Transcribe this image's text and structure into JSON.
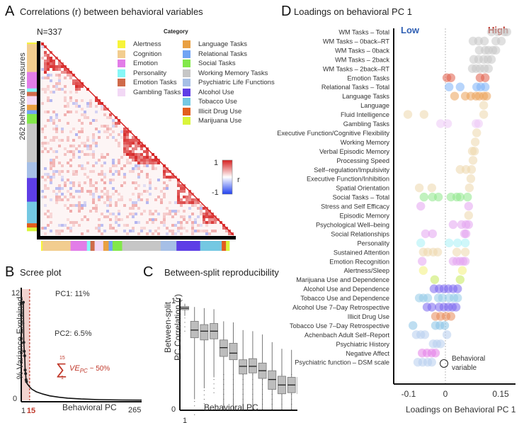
{
  "panelA": {
    "letter": "A",
    "title": "Correlations (r)  between behavioral variables",
    "n_label": "N=337",
    "y_label": "262 behavioral measures",
    "legend_title": "Category",
    "legend": [
      {
        "label": "Alertness",
        "color": "#f7f43a"
      },
      {
        "label": "Cognition",
        "color": "#f2cd8f"
      },
      {
        "label": "Emotion",
        "color": "#e27de8"
      },
      {
        "label": "Personality",
        "color": "#86f7f7"
      },
      {
        "label": "Emotion Tasks",
        "color": "#cf6a4a"
      },
      {
        "label": "Gambling Tasks",
        "color": "#f2d8f5"
      },
      {
        "label": "Language Tasks",
        "color": "#e9a042"
      },
      {
        "label": "Relational Tasks",
        "color": "#71a4f4"
      },
      {
        "label": "Social Tasks",
        "color": "#82e84a"
      },
      {
        "label": "Working Memory Tasks",
        "color": "#c6c6c6"
      },
      {
        "label": "Psychiatric Life Functions",
        "color": "#a6bfe6"
      },
      {
        "label": "Alcohol Use",
        "color": "#5e3ee6"
      },
      {
        "label": "Tobacco Use",
        "color": "#74c8e2"
      },
      {
        "label": "Illicit Drug Use",
        "color": "#e25d1c"
      },
      {
        "label": "Marijuana Use",
        "color": "#d9f53a"
      }
    ],
    "category_bar": [
      {
        "category": "Alertness",
        "fraction": 0.008
      },
      {
        "category": "Cognition",
        "fraction": 0.145
      },
      {
        "category": "Emotion",
        "fraction": 0.085
      },
      {
        "category": "Personality",
        "fraction": 0.018
      },
      {
        "category": "Emotion Tasks",
        "fraction": 0.022
      },
      {
        "category": "Gambling Tasks",
        "fraction": 0.045
      },
      {
        "category": "Language Tasks",
        "fraction": 0.028
      },
      {
        "category": "Relational Tasks",
        "fraction": 0.02
      },
      {
        "category": "Social Tasks",
        "fraction": 0.05
      },
      {
        "category": "Working Memory Tasks",
        "fraction": 0.2
      },
      {
        "category": "Psychiatric Life Functions",
        "fraction": 0.082
      },
      {
        "category": "Alcohol Use",
        "fraction": 0.123
      },
      {
        "category": "Tobacco Use",
        "fraction": 0.112
      },
      {
        "category": "Illicit Drug Use",
        "fraction": 0.022
      },
      {
        "category": "Marijuana Use",
        "fraction": 0.018
      }
    ],
    "colorbar": {
      "max_label": "1",
      "min_label": "-1",
      "label": "r",
      "max_color": "#d62020",
      "mid_color": "#ffffff",
      "min_color": "#2040f0"
    }
  },
  "chart_data": [
    {
      "type": "line",
      "panel": "B",
      "title": "Scree plot",
      "xlabel": "Behavioral PC",
      "ylabel": "% Variance Explained",
      "x_tick_labels": [
        "1",
        "15",
        "265"
      ],
      "y_tick_labels": [
        "0",
        "12"
      ],
      "xlim": [
        1,
        265
      ],
      "ylim": [
        0,
        12
      ],
      "highlight_range": [
        1,
        15
      ],
      "cutoff_pc": 15,
      "points": [
        {
          "pc": 1,
          "ve": 11
        },
        {
          "pc": 2,
          "ve": 6.5
        },
        {
          "pc": 3,
          "ve": 5.5
        },
        {
          "pc": 4,
          "ve": 5.0
        },
        {
          "pc": 5,
          "ve": 3.4
        },
        {
          "pc": 6,
          "ve": 3.0
        },
        {
          "pc": 7,
          "ve": 2.3
        },
        {
          "pc": 8,
          "ve": 2.1
        }
      ],
      "curve": [
        [
          9,
          1.9
        ],
        [
          12,
          1.7
        ],
        [
          15,
          1.5
        ],
        [
          20,
          1.25
        ],
        [
          30,
          0.95
        ],
        [
          45,
          0.7
        ],
        [
          60,
          0.5
        ],
        [
          80,
          0.35
        ],
        [
          100,
          0.25
        ],
        [
          130,
          0.15
        ],
        [
          170,
          0.08
        ],
        [
          220,
          0.04
        ],
        [
          265,
          0.02
        ]
      ],
      "annotations": [
        "PC1: 11%",
        "PC2: 6.5%"
      ],
      "sum_annotation": {
        "upper": "15",
        "lower": "1",
        "symbol": "∑",
        "text": "VE",
        "subscript": "PC",
        "suffix": " ~ 50%"
      },
      "accent_color": "#c0392b"
    },
    {
      "type": "box",
      "panel": "C",
      "title": "Between-split reproducibility",
      "xlabel": "Behavioral PC",
      "ylabel": "Between-split PC Correlation (r)",
      "x_tick_labels": [
        "1",
        "15"
      ],
      "y_tick_labels": [
        "0",
        "1"
      ],
      "ylim": [
        0,
        1
      ],
      "boxes": [
        {
          "pc": 1,
          "q1": 0.915,
          "median": 0.93,
          "q3": 0.945,
          "whisk_lo": 0.86,
          "whisk_hi": 0.97
        },
        {
          "pc": 2,
          "q1": 0.66,
          "median": 0.73,
          "q3": 0.81,
          "whisk_lo": 0.1,
          "whisk_hi": 0.94
        },
        {
          "pc": 3,
          "q1": 0.64,
          "median": 0.72,
          "q3": 0.78,
          "whisk_lo": 0.2,
          "whisk_hi": 0.93
        },
        {
          "pc": 4,
          "q1": 0.65,
          "median": 0.72,
          "q3": 0.79,
          "whisk_lo": 0.3,
          "whisk_hi": 0.92
        },
        {
          "pc": 5,
          "q1": 0.49,
          "median": 0.57,
          "q3": 0.64,
          "whisk_lo": 0.0,
          "whisk_hi": 0.81
        },
        {
          "pc": 6,
          "q1": 0.46,
          "median": 0.52,
          "q3": 0.61,
          "whisk_lo": 0.0,
          "whisk_hi": 0.8
        },
        {
          "pc": 7,
          "q1": 0.33,
          "median": 0.4,
          "q3": 0.46,
          "whisk_lo": 0.0,
          "whisk_hi": 0.73
        },
        {
          "pc": 8,
          "q1": 0.34,
          "median": 0.4,
          "q3": 0.47,
          "whisk_lo": 0.0,
          "whisk_hi": 0.72
        },
        {
          "pc": 9,
          "q1": 0.29,
          "median": 0.36,
          "q3": 0.43,
          "whisk_lo": 0.0,
          "whisk_hi": 0.69
        },
        {
          "pc": 10,
          "q1": 0.19,
          "median": 0.28,
          "q3": 0.36,
          "whisk_lo": 0.0,
          "whisk_hi": 0.62
        },
        {
          "pc": 11,
          "q1": 0.15,
          "median": 0.23,
          "q3": 0.31,
          "whisk_lo": 0.0,
          "whisk_hi": 0.56
        },
        {
          "pc": 12,
          "q1": 0.16,
          "median": 0.23,
          "q3": 0.3,
          "whisk_lo": 0.0,
          "whisk_hi": 0.55
        },
        {
          "pc": 13,
          "q1": 0.15,
          "median": 0.23,
          "q3": 0.3,
          "whisk_lo": 0.0,
          "whisk_hi": 0.54
        },
        {
          "pc": 14,
          "q1": 0.17,
          "median": 0.24,
          "q3": 0.3,
          "whisk_lo": 0.0,
          "whisk_hi": 0.53
        },
        {
          "pc": 15,
          "q1": 0.16,
          "median": 0.24,
          "q3": 0.3,
          "whisk_lo": 0.0,
          "whisk_hi": 0.54
        }
      ]
    },
    {
      "type": "scatter",
      "panel": "D",
      "title": "Loadings on behavioral PC 1",
      "xlabel": "Loadings on Behavioral PC 1",
      "x_tick_labels": [
        "-0.1",
        "0",
        "0.15"
      ],
      "x_ticks": [
        -0.1,
        0,
        0.15
      ],
      "xlim": [
        -0.136,
        0.19
      ],
      "low_label": "Low",
      "high_label": "High",
      "low_color": "#2f5fb3",
      "high_color": "#b8281e",
      "legend_label": "Behavioral variable",
      "rows": [
        {
          "label": "WM Tasks – Total",
          "color": "#c6c6c6",
          "values": [
            0.125,
            0.142,
            0.16,
            0.167
          ]
        },
        {
          "label": "WM Tasks – 0back–RT",
          "color": "#c6c6c6",
          "values": [
            0.075,
            0.09,
            0.106,
            0.137,
            0.152
          ]
        },
        {
          "label": "WM Tasks – 0back",
          "color": "#c6c6c6",
          "values": [
            0.092,
            0.108,
            0.117,
            0.129,
            0.137
          ]
        },
        {
          "label": "WM Tasks – 2back",
          "color": "#c6c6c6",
          "values": [
            0.077,
            0.09,
            0.104,
            0.115,
            0.125
          ]
        },
        {
          "label": "WM Tasks – 2back–RT",
          "color": "#c6c6c6",
          "values": [
            0.073,
            0.083,
            0.094,
            0.106,
            0.117
          ]
        },
        {
          "label": "Emotion Tasks",
          "color": "#e05c48",
          "values": [
            0.004,
            0.015,
            0.094,
            0.108
          ]
        },
        {
          "label": "Relational Tasks – Total",
          "color": "#7db3f7",
          "values": [
            0.01,
            0.04,
            0.085,
            0.096,
            0.108
          ]
        },
        {
          "label": "Language Tasks",
          "color": "#eba35a",
          "values": [
            0.025,
            0.054,
            0.069,
            0.083,
            0.092,
            0.104,
            0.112
          ]
        },
        {
          "label": "Language",
          "color": "#ecd7ac",
          "values": [
            0.104
          ]
        },
        {
          "label": "Fluid Intelligence",
          "color": "#ecd7ac",
          "values": [
            -0.102,
            -0.058,
            0.104
          ]
        },
        {
          "label": "Gambling Tasks",
          "color": "#ecc8f5",
          "values": [
            -0.013,
            0.006,
            0.083,
            0.09
          ]
        },
        {
          "label": "Executive Function/Cognitive Flexibility",
          "color": "#ecd7ac",
          "values": [
            0.085
          ]
        },
        {
          "label": "Working Memory",
          "color": "#ecd7ac",
          "values": [
            0.081
          ]
        },
        {
          "label": "Verbal Episodic Memory",
          "color": "#ecd7ac",
          "values": [
            0.073,
            0.079
          ]
        },
        {
          "label": "Processing Speed",
          "color": "#ecd7ac",
          "values": [
            0.075
          ]
        },
        {
          "label": "Self–regulation/Impulsivity",
          "color": "#ecd7ac",
          "values": [
            0.04,
            0.056,
            0.071
          ]
        },
        {
          "label": "Executive Function/Inhibition",
          "color": "#ecd7ac",
          "values": [
            0.069
          ]
        },
        {
          "label": "Spatial Orientation",
          "color": "#ecd7ac",
          "values": [
            -0.071,
            -0.037,
            0.065
          ]
        },
        {
          "label": "Social Tasks – Total",
          "color": "#8ee88a",
          "values": [
            -0.058,
            -0.035,
            -0.019,
            0.015,
            0.031,
            0.04,
            0.06
          ]
        },
        {
          "label": "Stress and Self Efficacy",
          "color": "#e3a4f0",
          "values": [
            -0.067,
            0.063
          ]
        },
        {
          "label": "Episodic Memory",
          "color": "#ecd7ac",
          "values": [
            0.063
          ]
        },
        {
          "label": "Psychological Well–being",
          "color": "#e3a4f0",
          "values": [
            0.021,
            0.044,
            0.056,
            0.063
          ]
        },
        {
          "label": "Social Relationships",
          "color": "#e3a4f0",
          "values": [
            -0.054,
            -0.035,
            0.052,
            0.056
          ]
        },
        {
          "label": "Personality",
          "color": "#a8f0f5",
          "values": [
            -0.067,
            0.01,
            0.033,
            0.054
          ]
        },
        {
          "label": "Sustained Attention",
          "color": "#ecd7ac",
          "values": [
            -0.06,
            -0.048,
            -0.033,
            -0.021,
            0.031,
            0.054
          ]
        },
        {
          "label": "Emotion Recognition",
          "color": "#e3a4f0",
          "values": [
            -0.063,
            0.021,
            0.031,
            0.04,
            0.048,
            0.054
          ]
        },
        {
          "label": "Alertness/Sleep",
          "color": "#f3f07a",
          "values": [
            -0.06,
            0.046
          ]
        },
        {
          "label": "Marijuana Use and Dependence",
          "color": "#c4ea5a",
          "values": [
            -0.029,
            0.04
          ]
        },
        {
          "label": "Alcohol Use and Dependence",
          "color": "#7a66ee",
          "values": [
            -0.031,
            -0.017,
            -0.004,
            0.008,
            0.021,
            0.033
          ]
        },
        {
          "label": "Tobacco Use and Dependence",
          "color": "#94cbe8",
          "values": [
            -0.071,
            -0.06,
            -0.048,
            -0.019,
            -0.008,
            0.01,
            0.023,
            0.033
          ]
        },
        {
          "label": "Alcohol Use 7–Day Retrospective",
          "color": "#7a66ee",
          "values": [
            -0.05,
            -0.037,
            -0.017,
            -0.004,
            0.008,
            0.019,
            0.029
          ]
        },
        {
          "label": "Illicit Drug Use",
          "color": "#e78a5a",
          "values": [
            -0.027,
            -0.013,
            0.002,
            0.015
          ]
        },
        {
          "label": "Tobacco Use 7–Day Retrospective",
          "color": "#88c3e6",
          "values": [
            -0.088,
            -0.027,
            -0.015,
            -0.002
          ]
        },
        {
          "label": "Achenbach Adult Self–Report",
          "color": "#b7cdee",
          "values": [
            -0.079,
            -0.067,
            -0.056,
            0.004
          ]
        },
        {
          "label": "Psychiatric History",
          "color": "#b7cdee",
          "values": [
            -0.033,
            -0.023,
            -0.013
          ]
        },
        {
          "label": "Negative Affect",
          "color": "#e37fe8",
          "values": [
            -0.063,
            -0.05,
            -0.037,
            -0.027
          ]
        },
        {
          "label": "Psychiatric function – DSM scale",
          "color": "#b7cdee",
          "values": [
            -0.075,
            -0.062,
            -0.048,
            -0.037
          ]
        }
      ]
    }
  ],
  "panelB": {
    "letter": "B"
  },
  "panelC": {
    "letter": "C"
  },
  "panelD": {
    "letter": "D"
  }
}
